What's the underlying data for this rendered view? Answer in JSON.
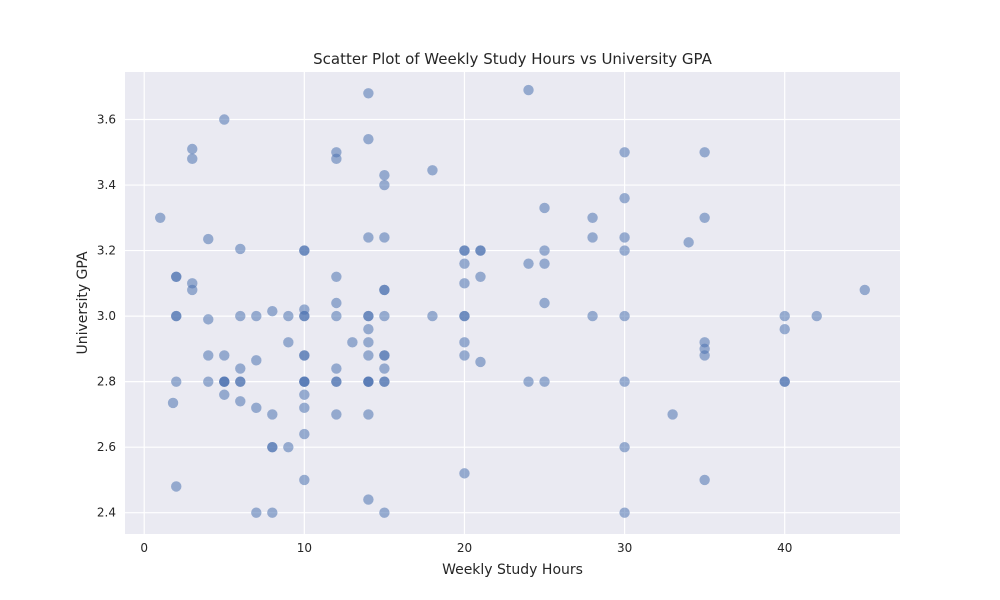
{
  "chart_data": {
    "type": "scatter",
    "title": "Scatter Plot of Weekly Study Hours vs University GPA",
    "xlabel": "Weekly Study Hours",
    "ylabel": "University GPA",
    "xlim": [
      -1.2,
      47.2
    ],
    "ylim": [
      2.335,
      3.745
    ],
    "xticks": [
      0,
      10,
      20,
      30,
      40
    ],
    "yticks": [
      2.4,
      2.6,
      2.8,
      3.0,
      3.2,
      3.4,
      3.6
    ],
    "ytick_labels": [
      "2.4",
      "2.6",
      "2.8",
      "3.0",
      "3.2",
      "3.4",
      "3.6"
    ],
    "grid": true,
    "point_color": "#4c72b0",
    "background_color": "#eaeaf2",
    "points": [
      {
        "x": 1,
        "y": 3.3
      },
      {
        "x": 1.8,
        "y": 2.735
      },
      {
        "x": 2,
        "y": 3.12
      },
      {
        "x": 2,
        "y": 3.12
      },
      {
        "x": 2,
        "y": 3.0
      },
      {
        "x": 2,
        "y": 3.0
      },
      {
        "x": 2,
        "y": 2.8
      },
      {
        "x": 2,
        "y": 2.48
      },
      {
        "x": 3,
        "y": 3.51
      },
      {
        "x": 3,
        "y": 3.48
      },
      {
        "x": 3,
        "y": 3.1
      },
      {
        "x": 3,
        "y": 3.08
      },
      {
        "x": 4,
        "y": 3.235
      },
      {
        "x": 4,
        "y": 2.99
      },
      {
        "x": 4,
        "y": 2.88
      },
      {
        "x": 4,
        "y": 2.8
      },
      {
        "x": 5,
        "y": 3.6
      },
      {
        "x": 5,
        "y": 2.88
      },
      {
        "x": 5,
        "y": 2.8
      },
      {
        "x": 5,
        "y": 2.8
      },
      {
        "x": 5,
        "y": 2.8
      },
      {
        "x": 5,
        "y": 2.76
      },
      {
        "x": 6,
        "y": 3.205
      },
      {
        "x": 6,
        "y": 3.0
      },
      {
        "x": 6,
        "y": 2.84
      },
      {
        "x": 6,
        "y": 2.8
      },
      {
        "x": 6,
        "y": 2.8
      },
      {
        "x": 6,
        "y": 2.74
      },
      {
        "x": 7,
        "y": 3.0
      },
      {
        "x": 7,
        "y": 2.865
      },
      {
        "x": 7,
        "y": 2.72
      },
      {
        "x": 7,
        "y": 2.4
      },
      {
        "x": 8,
        "y": 3.015
      },
      {
        "x": 8,
        "y": 2.7
      },
      {
        "x": 8,
        "y": 2.6
      },
      {
        "x": 8,
        "y": 2.6
      },
      {
        "x": 8,
        "y": 2.4
      },
      {
        "x": 9,
        "y": 3.0
      },
      {
        "x": 9,
        "y": 2.92
      },
      {
        "x": 9,
        "y": 2.6
      },
      {
        "x": 10,
        "y": 3.2
      },
      {
        "x": 10,
        "y": 3.2
      },
      {
        "x": 10,
        "y": 3.02
      },
      {
        "x": 10,
        "y": 3.0
      },
      {
        "x": 10,
        "y": 3.0
      },
      {
        "x": 10,
        "y": 2.88
      },
      {
        "x": 10,
        "y": 2.88
      },
      {
        "x": 10,
        "y": 2.8
      },
      {
        "x": 10,
        "y": 2.8
      },
      {
        "x": 10,
        "y": 2.8
      },
      {
        "x": 10,
        "y": 2.76
      },
      {
        "x": 10,
        "y": 2.72
      },
      {
        "x": 10,
        "y": 2.64
      },
      {
        "x": 10,
        "y": 2.5
      },
      {
        "x": 12,
        "y": 3.5
      },
      {
        "x": 12,
        "y": 3.48
      },
      {
        "x": 12,
        "y": 3.12
      },
      {
        "x": 12,
        "y": 3.04
      },
      {
        "x": 12,
        "y": 3.0
      },
      {
        "x": 12,
        "y": 2.84
      },
      {
        "x": 12,
        "y": 2.8
      },
      {
        "x": 12,
        "y": 2.8
      },
      {
        "x": 12,
        "y": 2.7
      },
      {
        "x": 13,
        "y": 2.92
      },
      {
        "x": 14,
        "y": 3.68
      },
      {
        "x": 14,
        "y": 3.54
      },
      {
        "x": 14,
        "y": 3.24
      },
      {
        "x": 14,
        "y": 3.0
      },
      {
        "x": 14,
        "y": 3.0
      },
      {
        "x": 14,
        "y": 2.96
      },
      {
        "x": 14,
        "y": 2.92
      },
      {
        "x": 14,
        "y": 2.88
      },
      {
        "x": 14,
        "y": 2.8
      },
      {
        "x": 14,
        "y": 2.8
      },
      {
        "x": 14,
        "y": 2.8
      },
      {
        "x": 14,
        "y": 2.7
      },
      {
        "x": 14,
        "y": 2.44
      },
      {
        "x": 15,
        "y": 3.43
      },
      {
        "x": 15,
        "y": 3.4
      },
      {
        "x": 15,
        "y": 3.24
      },
      {
        "x": 15,
        "y": 3.08
      },
      {
        "x": 15,
        "y": 3.08
      },
      {
        "x": 15,
        "y": 3.0
      },
      {
        "x": 15,
        "y": 2.88
      },
      {
        "x": 15,
        "y": 2.88
      },
      {
        "x": 15,
        "y": 2.84
      },
      {
        "x": 15,
        "y": 2.8
      },
      {
        "x": 15,
        "y": 2.8
      },
      {
        "x": 15,
        "y": 2.4
      },
      {
        "x": 18,
        "y": 3.445
      },
      {
        "x": 18,
        "y": 3.0
      },
      {
        "x": 20,
        "y": 3.2
      },
      {
        "x": 20,
        "y": 3.2
      },
      {
        "x": 20,
        "y": 3.16
      },
      {
        "x": 20,
        "y": 3.1
      },
      {
        "x": 20,
        "y": 3.0
      },
      {
        "x": 20,
        "y": 3.0
      },
      {
        "x": 20,
        "y": 2.92
      },
      {
        "x": 20,
        "y": 2.88
      },
      {
        "x": 20,
        "y": 2.52
      },
      {
        "x": 21,
        "y": 3.2
      },
      {
        "x": 21,
        "y": 3.2
      },
      {
        "x": 21,
        "y": 3.12
      },
      {
        "x": 21,
        "y": 2.86
      },
      {
        "x": 24,
        "y": 3.69
      },
      {
        "x": 24,
        "y": 3.16
      },
      {
        "x": 24,
        "y": 2.8
      },
      {
        "x": 25,
        "y": 3.33
      },
      {
        "x": 25,
        "y": 3.2
      },
      {
        "x": 25,
        "y": 3.16
      },
      {
        "x": 25,
        "y": 3.04
      },
      {
        "x": 25,
        "y": 2.8
      },
      {
        "x": 28,
        "y": 3.3
      },
      {
        "x": 28,
        "y": 3.24
      },
      {
        "x": 28,
        "y": 3.0
      },
      {
        "x": 30,
        "y": 3.5
      },
      {
        "x": 30,
        "y": 3.36
      },
      {
        "x": 30,
        "y": 3.24
      },
      {
        "x": 30,
        "y": 3.2
      },
      {
        "x": 30,
        "y": 3.0
      },
      {
        "x": 30,
        "y": 2.8
      },
      {
        "x": 30,
        "y": 2.6
      },
      {
        "x": 30,
        "y": 2.4
      },
      {
        "x": 33,
        "y": 2.7
      },
      {
        "x": 34,
        "y": 3.225
      },
      {
        "x": 35,
        "y": 3.5
      },
      {
        "x": 35,
        "y": 3.3
      },
      {
        "x": 35,
        "y": 2.92
      },
      {
        "x": 35,
        "y": 2.9
      },
      {
        "x": 35,
        "y": 2.88
      },
      {
        "x": 35,
        "y": 2.5
      },
      {
        "x": 40,
        "y": 3.0
      },
      {
        "x": 40,
        "y": 2.96
      },
      {
        "x": 40,
        "y": 2.8
      },
      {
        "x": 40,
        "y": 2.8
      },
      {
        "x": 42,
        "y": 3.0
      },
      {
        "x": 45,
        "y": 3.08
      }
    ]
  }
}
